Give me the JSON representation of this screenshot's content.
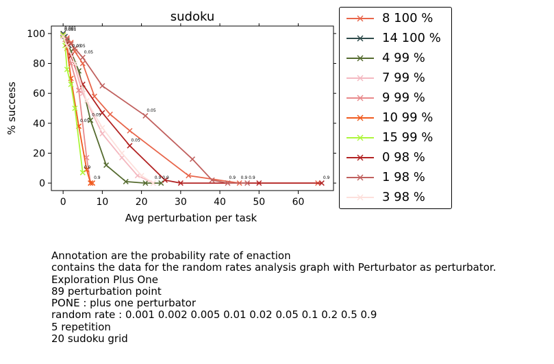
{
  "chart_data": {
    "type": "line",
    "title": "sudoku",
    "xlabel": "Avg perturbation per task",
    "ylabel": "% success",
    "xlim": [
      -3,
      69
    ],
    "ylim": [
      -5,
      105
    ],
    "xticks": [
      0,
      10,
      20,
      30,
      40,
      50,
      60
    ],
    "yticks": [
      0,
      20,
      40,
      60,
      80,
      100
    ],
    "legend_position": "outside-right",
    "series": [
      {
        "name": "8 100 %",
        "color": "#e8654a",
        "points": [
          [
            0,
            100
          ],
          [
            1,
            97
          ],
          [
            2,
            94
          ],
          [
            3,
            88
          ],
          [
            5,
            80
          ],
          [
            8,
            58
          ],
          [
            12,
            46
          ],
          [
            17,
            35
          ],
          [
            32,
            5
          ],
          [
            45,
            0
          ],
          [
            65,
            0
          ]
        ],
        "labels": [
          [
            0,
            100,
            "0.001"
          ],
          [
            3,
            88,
            "0.05"
          ],
          [
            45,
            0,
            "0.9"
          ]
        ]
      },
      {
        "name": "14 100 %",
        "color": "#2e4a4a",
        "points": [
          [
            0,
            100
          ],
          [
            0.5,
            98
          ],
          [
            1,
            95
          ],
          [
            1.5,
            92
          ]
        ],
        "labels": []
      },
      {
        "name": "4 99 %",
        "color": "#556b2f",
        "points": [
          [
            0,
            99
          ],
          [
            1,
            95
          ],
          [
            2,
            88
          ],
          [
            4,
            75
          ],
          [
            7,
            42
          ],
          [
            11,
            12
          ],
          [
            16,
            1
          ],
          [
            21,
            0
          ],
          [
            25,
            0
          ]
        ],
        "labels": [
          [
            0,
            99,
            "0.05"
          ],
          [
            2,
            88,
            "0.05"
          ],
          [
            7,
            42,
            "0.05"
          ],
          [
            25,
            0,
            "0.9"
          ]
        ]
      },
      {
        "name": "7 99 %",
        "color": "#f4b8c0",
        "points": [
          [
            0,
            99
          ],
          [
            1,
            93
          ],
          [
            2,
            86
          ],
          [
            5,
            60
          ],
          [
            10,
            33
          ],
          [
            15,
            17
          ],
          [
            19,
            5
          ],
          [
            23,
            0
          ]
        ],
        "labels": [
          [
            23,
            0,
            "0.9"
          ]
        ]
      },
      {
        "name": "9 99 %",
        "color": "#e8888a",
        "points": [
          [
            0,
            99
          ],
          [
            0.5,
            96
          ],
          [
            1,
            90
          ],
          [
            2,
            80
          ],
          [
            4,
            62
          ],
          [
            6,
            17
          ],
          [
            7,
            0
          ]
        ],
        "labels": []
      },
      {
        "name": "10 99 %",
        "color": "#f05a1e",
        "points": [
          [
            0,
            99
          ],
          [
            1,
            90
          ],
          [
            2,
            70
          ],
          [
            4,
            38
          ],
          [
            6,
            9
          ],
          [
            7,
            0
          ],
          [
            7.5,
            0
          ]
        ],
        "labels": [
          [
            4,
            38,
            "0.05"
          ],
          [
            7.5,
            0,
            "0.9"
          ]
        ]
      },
      {
        "name": "15 99 %",
        "color": "#adf53b",
        "points": [
          [
            0,
            99
          ],
          [
            0.5,
            92
          ],
          [
            1,
            76
          ],
          [
            2,
            66
          ],
          [
            3,
            50
          ],
          [
            5,
            7
          ]
        ],
        "labels": [
          [
            0,
            99,
            "0.001"
          ],
          [
            5,
            7,
            "0.9"
          ]
        ]
      },
      {
        "name": "0 98 %",
        "color": "#b22222",
        "points": [
          [
            0,
            98
          ],
          [
            1,
            93
          ],
          [
            2,
            85
          ],
          [
            5,
            66
          ],
          [
            10,
            47
          ],
          [
            17,
            25
          ],
          [
            26,
            2
          ],
          [
            30,
            0
          ],
          [
            50,
            0
          ],
          [
            66,
            0
          ]
        ],
        "labels": [
          [
            17,
            25,
            "0.05"
          ],
          [
            66,
            0,
            "0.9"
          ]
        ]
      },
      {
        "name": "1 98 %",
        "color": "#c0605e",
        "points": [
          [
            0,
            98
          ],
          [
            1,
            96
          ],
          [
            2,
            93
          ],
          [
            3,
            90
          ],
          [
            5,
            84
          ],
          [
            10,
            65
          ],
          [
            21,
            45
          ],
          [
            33,
            16
          ],
          [
            38,
            2
          ],
          [
            42,
            0
          ],
          [
            47,
            0
          ]
        ],
        "labels": [
          [
            5,
            84,
            "0.05"
          ],
          [
            21,
            45,
            "0.05"
          ],
          [
            42,
            0,
            "0.9"
          ],
          [
            47,
            0,
            "0.9"
          ]
        ]
      },
      {
        "name": "3 98 %",
        "color": "#fde0dc",
        "points": [
          [
            0,
            98
          ],
          [
            1,
            92
          ],
          [
            3,
            80
          ],
          [
            6,
            55
          ],
          [
            10,
            37
          ],
          [
            15,
            20
          ],
          [
            20,
            5
          ],
          [
            23,
            0
          ]
        ],
        "labels": []
      }
    ]
  },
  "notes": [
    "Annotation are the probability rate of enaction",
    "contains the data for the random rates analysis graph with Perturbator as perturbator.",
    "Exploration Plus One",
    "89 perturbation point",
    "PONE : plus one perturbator",
    "random rate : 0.001 0.002 0.005 0.01 0.02 0.05 0.1 0.2 0.5 0.9",
    "5 repetition",
    "20 sudoku grid"
  ]
}
